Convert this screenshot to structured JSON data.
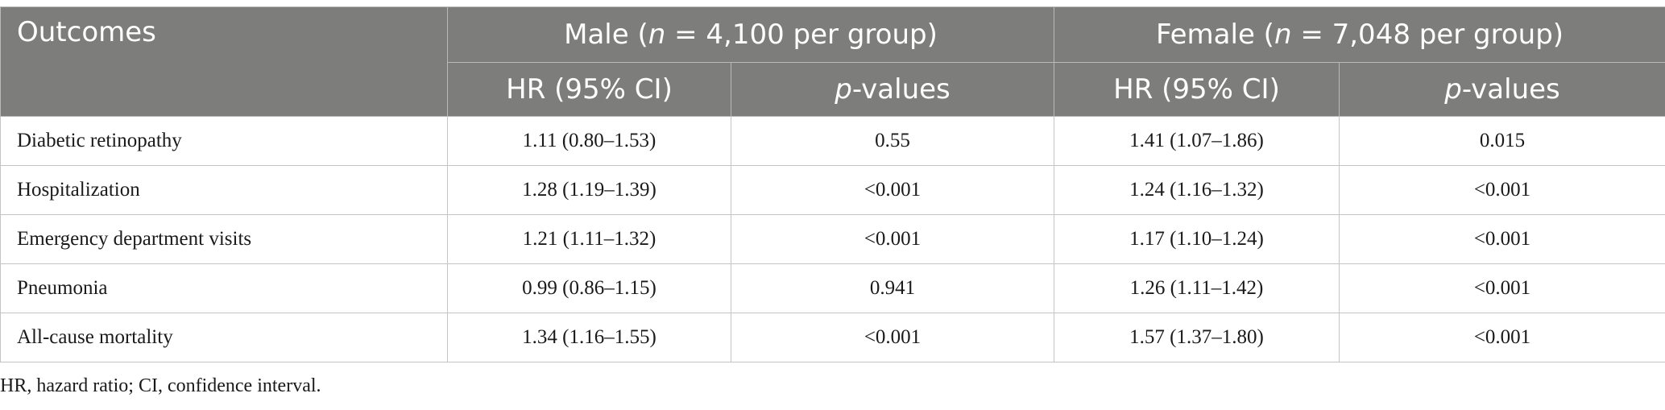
{
  "table": {
    "header": {
      "outcomes": "Outcomes",
      "male_group": {
        "prefix": "Male (",
        "n": "n",
        "suffix": " = 4,100 per group)"
      },
      "female_group": {
        "prefix": "Female (",
        "n": "n",
        "suffix": " = 7,048 per group)"
      },
      "hr": "HR (95% CI)",
      "p_italic": "p",
      "p_rest": "-values"
    },
    "rows": [
      {
        "outcome": "Diabetic retinopathy",
        "male_hr": "1.11 (0.80–1.53)",
        "male_p": "0.55",
        "female_hr": "1.41 (1.07–1.86)",
        "female_p": "0.015"
      },
      {
        "outcome": "Hospitalization",
        "male_hr": "1.28 (1.19–1.39)",
        "male_p": "<0.001",
        "female_hr": "1.24 (1.16–1.32)",
        "female_p": "<0.001"
      },
      {
        "outcome": "Emergency department visits",
        "male_hr": "1.21 (1.11–1.32)",
        "male_p": "<0.001",
        "female_hr": "1.17 (1.10–1.24)",
        "female_p": "<0.001"
      },
      {
        "outcome": "Pneumonia",
        "male_hr": "0.99 (0.86–1.15)",
        "male_p": "0.941",
        "female_hr": "1.26 (1.11–1.42)",
        "female_p": "<0.001"
      },
      {
        "outcome": "All-cause mortality",
        "male_hr": "1.34 (1.16–1.55)",
        "male_p": "<0.001",
        "female_hr": "1.57 (1.37–1.80)",
        "female_p": "<0.001"
      }
    ]
  },
  "footnote": "HR, hazard ratio; CI, confidence interval.",
  "colors": {
    "header_bg": "#7d7e7c",
    "header_text": "#ffffff",
    "border": "#c4c4c4"
  }
}
